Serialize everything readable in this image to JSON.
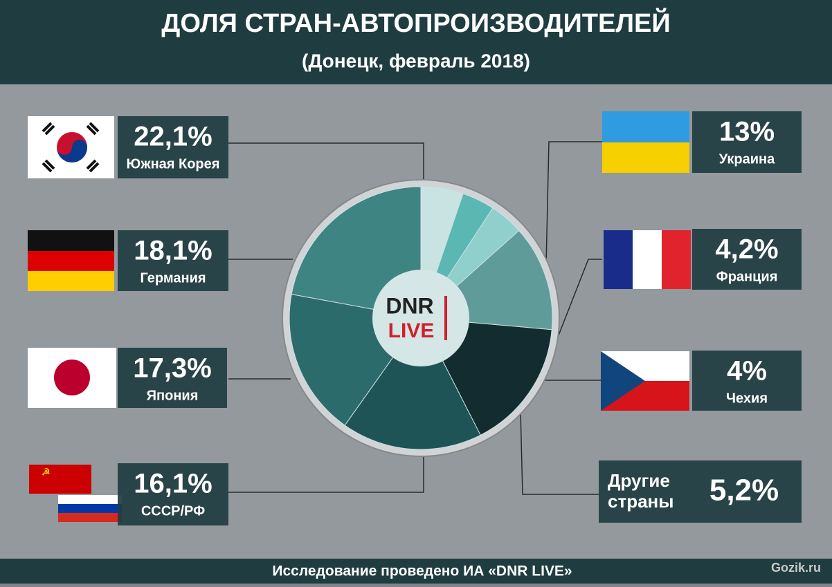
{
  "chart_data": {
    "type": "pie",
    "title": "ДОЛЯ СТРАН-АВТОПРОИЗВОДИТЕЛЕЙ",
    "subtitle": "(Донецк, февраль 2018)",
    "categories": [
      "Южная Корея",
      "Германия",
      "Япония",
      "СССР/РФ",
      "Украина",
      "Франция",
      "Чехия",
      "Другие страны"
    ],
    "values": [
      22.1,
      18.1,
      17.3,
      16.1,
      13,
      4.2,
      4,
      5.2
    ],
    "value_labels": [
      "22,1%",
      "18,1%",
      "17,3%",
      "16,1%",
      "13%",
      "4,2%",
      "4%",
      "5,2%"
    ],
    "colors": [
      "#3e8482",
      "#2c6b6c",
      "#1f5456",
      "#132c2f",
      "#5f9c99",
      "#8fcfcc",
      "#5ab7b2",
      "#c9e3e3"
    ],
    "logo": [
      "DNR",
      "LIVE"
    ],
    "footer": "Исследование проведено ИА «DNR LIVE»",
    "watermark": "Gozik.ru"
  }
}
